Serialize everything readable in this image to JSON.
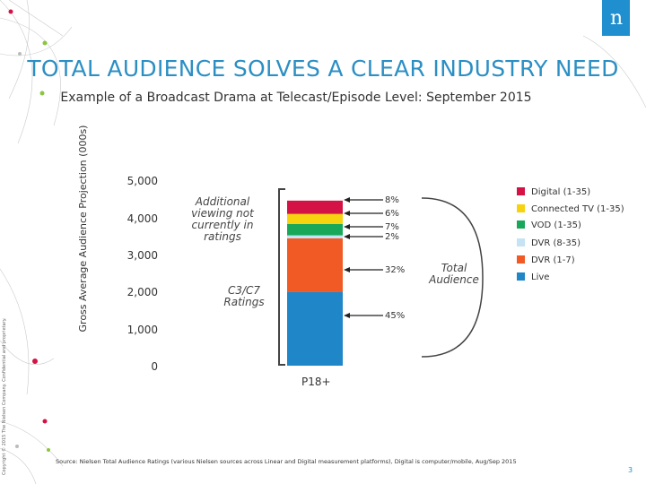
{
  "header": {
    "title": "TOTAL AUDIENCE SOLVES A CLEAR INDUSTRY NEED",
    "subtitle": "Example of a Broadcast Drama at Telecast/Episode Level: September 2015",
    "logo_letter": "n"
  },
  "side_copyright": "Copyright © 2015 The Nielsen Company. Confidential and proprietary.",
  "footer": {
    "source": "Source: Nielsen Total Audience Ratings (various Nielsen sources across Linear and Digital measurement platforms), Digital is computer/mobile, Aug/Sep 2015",
    "page_number": "3"
  },
  "annotations": {
    "additional": "Additional viewing not currently in ratings",
    "c3c7": "C3/C7 Ratings",
    "total": "Total Audience"
  },
  "chart_data": {
    "type": "bar",
    "stacked": true,
    "categories": [
      "P18+"
    ],
    "ylabel": "Gross Average Audience Projection (000s)",
    "ylim": [
      0,
      5000
    ],
    "yticks": [
      "0",
      "1,000",
      "2,000",
      "3,000",
      "4,000",
      "5,000"
    ],
    "grid": false,
    "legend_position": "right",
    "series": [
      {
        "name": "Live",
        "values": [
          2000
        ],
        "label": "45%",
        "color": "#1f86c8"
      },
      {
        "name": "DVR (1-7)",
        "values": [
          1450
        ],
        "label": "32%",
        "color": "#f15a24"
      },
      {
        "name": "DVR (8-35)",
        "values": [
          80
        ],
        "label": "2%",
        "color": "#c5e3f4"
      },
      {
        "name": "VOD (1-35)",
        "values": [
          310
        ],
        "label": "7%",
        "color": "#19a85a"
      },
      {
        "name": "Connected TV (1-35)",
        "values": [
          270
        ],
        "label": "6%",
        "color": "#f7d20e"
      },
      {
        "name": "Digital (1-35)",
        "values": [
          360
        ],
        "label": "8%",
        "color": "#d41245"
      }
    ],
    "legend_order": [
      "Digital (1-35)",
      "Connected TV (1-35)",
      "VOD (1-35)",
      "DVR (8-35)",
      "DVR (1-7)",
      "Live"
    ]
  }
}
